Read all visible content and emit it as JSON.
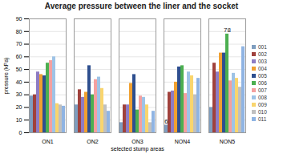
{
  "chart_data": {
    "type": "bar",
    "title": "Average pressure between the liner and the socket",
    "xlabel": "selected stump areas",
    "ylabel": "pressure (kPa)",
    "categories": [
      "ON1",
      "ON2",
      "ON3",
      "NON4",
      "NON5"
    ],
    "ylim": [
      0,
      90
    ],
    "yticks": [
      0,
      10,
      20,
      30,
      40,
      50,
      60,
      70,
      80,
      90
    ],
    "grid": true,
    "legend": "right",
    "series": [
      {
        "name": "001",
        "color": "#7f9ebf",
        "values": [
          29,
          22,
          8,
          6,
          20
        ],
        "value_labels": [
          null,
          null,
          null,
          "6",
          null
        ]
      },
      {
        "name": "002",
        "color": "#a0413c",
        "values": [
          30,
          34,
          22,
          32,
          55
        ]
      },
      {
        "name": "003",
        "color": "#8e7cc3",
        "values": [
          48,
          28,
          22,
          33,
          48
        ]
      },
      {
        "name": "004",
        "color": "#f0a030",
        "values": [
          46,
          32,
          39,
          40,
          63
        ]
      },
      {
        "name": "005",
        "color": "#2e4f8f",
        "values": [
          45,
          53,
          46,
          52,
          63
        ]
      },
      {
        "name": "006",
        "color": "#4caf50",
        "values": [
          55,
          30,
          18,
          53,
          78
        ],
        "value_labels": [
          null,
          null,
          null,
          null,
          "78"
        ]
      },
      {
        "name": "007",
        "color": "#f4a0a0",
        "values": [
          57,
          42,
          29,
          31,
          41
        ]
      },
      {
        "name": "008",
        "color": "#9ec3e6",
        "values": [
          60,
          44,
          28,
          48,
          47
        ]
      },
      {
        "name": "009",
        "color": "#f9d56e",
        "values": [
          23,
          35,
          22,
          45,
          43
        ]
      },
      {
        "name": "010",
        "color": "#c0c0c0",
        "values": [
          22,
          22,
          8,
          30,
          36
        ]
      },
      {
        "name": "011",
        "color": "#8fb4e3",
        "values": [
          21,
          17,
          17,
          43,
          68
        ]
      }
    ]
  }
}
